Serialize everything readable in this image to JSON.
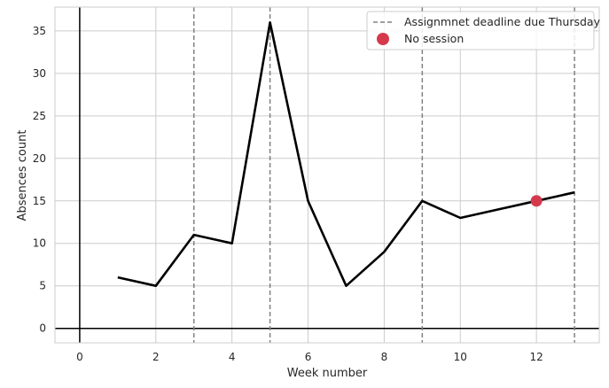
{
  "chart_data": {
    "type": "line",
    "xlabel": "Week number",
    "ylabel": "Absences count",
    "xlim": [
      -0.65,
      13.65
    ],
    "ylim": [
      -1.7,
      37.8
    ],
    "xticks": [
      0,
      2,
      4,
      6,
      8,
      10,
      12
    ],
    "yticks": [
      0,
      5,
      10,
      15,
      20,
      25,
      30,
      35
    ],
    "grid": true,
    "legend_position": "top-right",
    "series": [
      {
        "x": [
          1,
          2,
          3,
          4,
          5,
          6,
          7,
          8,
          9,
          10,
          11,
          12,
          13
        ],
        "y": [
          6,
          5,
          11,
          10,
          36,
          15,
          5,
          9,
          15,
          13,
          14,
          15,
          16
        ],
        "color": "#000000"
      }
    ],
    "deadlines": {
      "name": "Assignmnet deadline due Thursday",
      "x": [
        3,
        5,
        9,
        13
      ],
      "color": "#808080"
    },
    "no_session": {
      "name": "No session",
      "points": [
        {
          "x": 12,
          "y": 15
        }
      ],
      "color": "#d6394c"
    },
    "reference_lines": {
      "x": 0,
      "y": 0,
      "color": "#000000"
    }
  }
}
